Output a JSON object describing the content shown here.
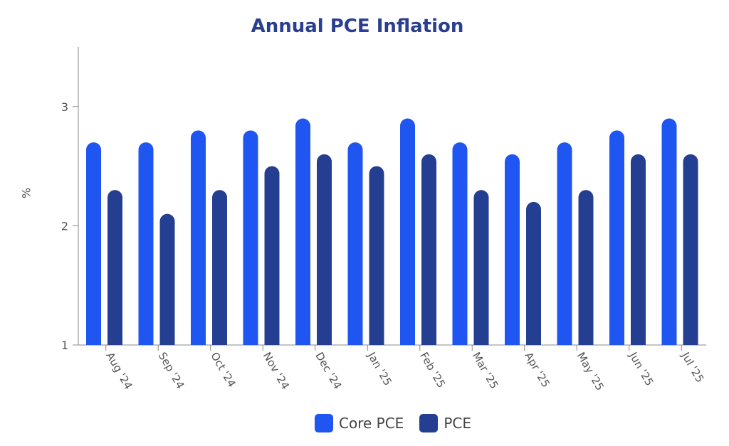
{
  "chart_data": {
    "type": "bar",
    "title": "Annual PCE Inflation",
    "ylabel": "%",
    "xlabel": "",
    "ylim": [
      1,
      3.5
    ],
    "yticks": [
      1,
      2,
      3
    ],
    "grid": false,
    "legend_position": "bottom-center",
    "categories": [
      "Aug '24",
      "Sep '24",
      "Oct '24",
      "Nov '24",
      "Dec '24",
      "Jan '25",
      "Feb '25",
      "Mar '25",
      "Apr '25",
      "May '25",
      "Jun '25",
      "Jul '25"
    ],
    "series": [
      {
        "name": "Core PCE",
        "color": "#1f55f0",
        "values": [
          2.7,
          2.7,
          2.8,
          2.8,
          2.9,
          2.7,
          2.9,
          2.7,
          2.6,
          2.7,
          2.8,
          2.9
        ]
      },
      {
        "name": "PCE",
        "color": "#243f91",
        "values": [
          2.3,
          2.1,
          2.3,
          2.5,
          2.6,
          2.5,
          2.6,
          2.3,
          2.2,
          2.3,
          2.6,
          2.6
        ]
      }
    ]
  }
}
